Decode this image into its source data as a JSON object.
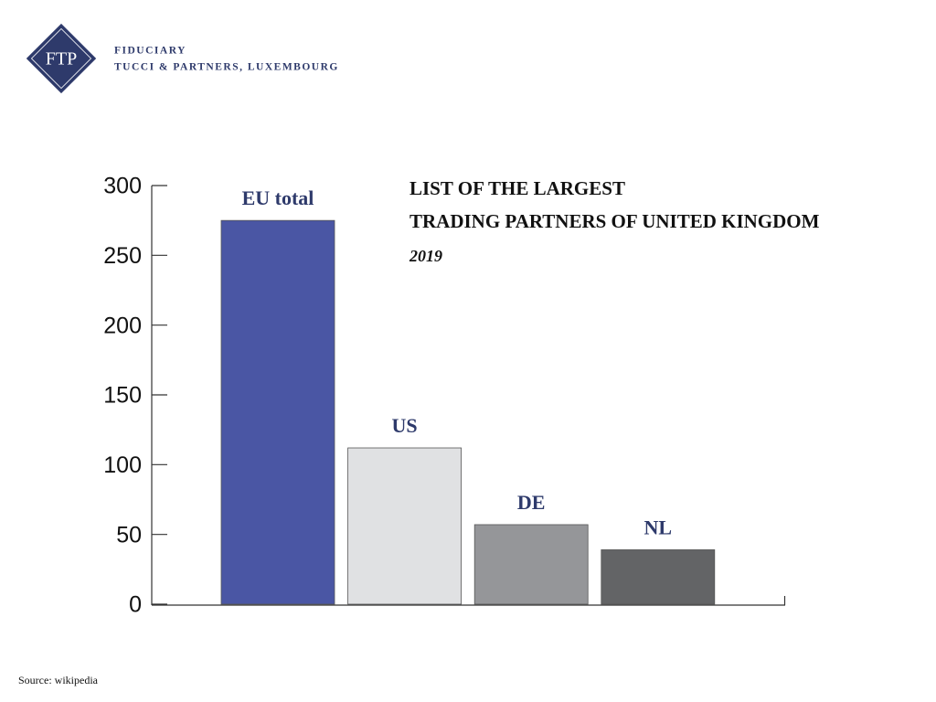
{
  "header": {
    "logo": "FTP",
    "lines": [
      "FIDUCIARY",
      "TUCCI & PARTNERS, LUXEMBOURG"
    ]
  },
  "chart_data": {
    "type": "bar",
    "title": [
      "LIST OF THE LARGEST",
      "TRADING PARTNERS OF UNITED KINGDOM"
    ],
    "subtitle": "2019",
    "categories": [
      "EU total",
      "US",
      "DE",
      "NL"
    ],
    "values": [
      275,
      112,
      57,
      39
    ],
    "colors": [
      "#4a56a4",
      "#e0e1e3",
      "#959699",
      "#636466"
    ],
    "ylim": [
      0,
      300
    ],
    "yticks": [
      0,
      50,
      100,
      150,
      200,
      250,
      300
    ],
    "source": "Source: wikipedia"
  }
}
